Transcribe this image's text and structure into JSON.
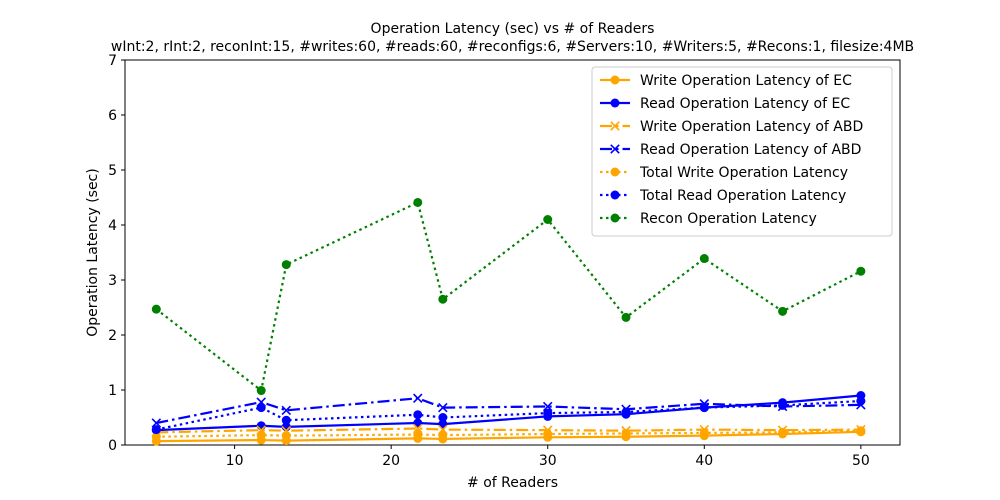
{
  "chart_data": {
    "type": "line",
    "title": "Operation Latency (sec) vs # of Readers",
    "subtitle": "wInt:2, rInt:2, reconInt:15, #writes:60, #reads:60, #reconfigs:6, #Servers:10, #Writers:5, #Recons:1, filesize:4MB",
    "xlabel": "# of Readers",
    "ylabel": "Operation Latency (sec)",
    "xlim": [
      3,
      52.5
    ],
    "ylim": [
      0,
      7
    ],
    "xticks": [
      10,
      20,
      30,
      40,
      50
    ],
    "yticks": [
      0,
      1,
      2,
      3,
      4,
      5,
      6,
      7
    ],
    "grid": false,
    "legend_position": "top-right",
    "series": [
      {
        "name": "Write Operation Latency of EC",
        "color": "#ffa500",
        "line_style": "solid",
        "marker": "circle",
        "points": [
          [
            5,
            0.07
          ],
          [
            11.7,
            0.09
          ],
          [
            13.3,
            0.08
          ],
          [
            21.7,
            0.12
          ],
          [
            23.3,
            0.11
          ],
          [
            30,
            0.14
          ],
          [
            35,
            0.15
          ],
          [
            40,
            0.17
          ],
          [
            45,
            0.2
          ],
          [
            50,
            0.24
          ]
        ]
      },
      {
        "name": "Read Operation Latency of EC",
        "color": "#0000ff",
        "line_style": "solid",
        "marker": "circle",
        "points": [
          [
            5,
            0.27
          ],
          [
            11.7,
            0.35
          ],
          [
            13.3,
            0.33
          ],
          [
            21.7,
            0.4
          ],
          [
            23.3,
            0.38
          ],
          [
            30,
            0.52
          ],
          [
            35,
            0.56
          ],
          [
            40,
            0.68
          ],
          [
            45,
            0.77
          ],
          [
            50,
            0.9
          ]
        ]
      },
      {
        "name": "Write Operation Latency of ABD",
        "color": "#ffa500",
        "line_style": "dashdot",
        "marker": "x",
        "points": [
          [
            5,
            0.23
          ],
          [
            11.7,
            0.27
          ],
          [
            13.3,
            0.26
          ],
          [
            21.7,
            0.3
          ],
          [
            23.3,
            0.28
          ],
          [
            30,
            0.27
          ],
          [
            35,
            0.26
          ],
          [
            40,
            0.28
          ],
          [
            45,
            0.27
          ],
          [
            50,
            0.28
          ]
        ]
      },
      {
        "name": "Read Operation Latency of ABD",
        "color": "#0000ff",
        "line_style": "dashdot",
        "marker": "x",
        "points": [
          [
            5,
            0.4
          ],
          [
            11.7,
            0.78
          ],
          [
            13.3,
            0.63
          ],
          [
            21.7,
            0.85
          ],
          [
            23.3,
            0.68
          ],
          [
            30,
            0.7
          ],
          [
            35,
            0.65
          ],
          [
            40,
            0.75
          ],
          [
            45,
            0.7
          ],
          [
            50,
            0.73
          ]
        ]
      },
      {
        "name": "Total Write Operation Latency",
        "color": "#ffa500",
        "line_style": "dotted",
        "marker": "circle",
        "points": [
          [
            5,
            0.15
          ],
          [
            11.7,
            0.18
          ],
          [
            13.3,
            0.17
          ],
          [
            21.7,
            0.19
          ],
          [
            23.3,
            0.18
          ],
          [
            30,
            0.2
          ],
          [
            35,
            0.21
          ],
          [
            40,
            0.22
          ],
          [
            45,
            0.23
          ],
          [
            50,
            0.26
          ]
        ]
      },
      {
        "name": "Total Read Operation Latency",
        "color": "#0000ff",
        "line_style": "dotted",
        "marker": "circle",
        "points": [
          [
            5,
            0.28
          ],
          [
            11.7,
            0.68
          ],
          [
            13.3,
            0.45
          ],
          [
            21.7,
            0.55
          ],
          [
            23.3,
            0.5
          ],
          [
            30,
            0.58
          ],
          [
            35,
            0.6
          ],
          [
            40,
            0.68
          ],
          [
            45,
            0.72
          ],
          [
            50,
            0.8
          ]
        ]
      },
      {
        "name": "Recon Operation Latency",
        "color": "#008000",
        "line_style": "dotted",
        "marker": "circle",
        "points": [
          [
            5,
            2.47
          ],
          [
            11.7,
            0.99
          ],
          [
            13.3,
            3.28
          ],
          [
            21.7,
            4.41
          ],
          [
            23.3,
            2.65
          ],
          [
            30,
            4.1
          ],
          [
            35,
            2.32
          ],
          [
            40,
            3.39
          ],
          [
            45,
            2.43
          ],
          [
            50,
            3.16
          ]
        ]
      }
    ]
  }
}
